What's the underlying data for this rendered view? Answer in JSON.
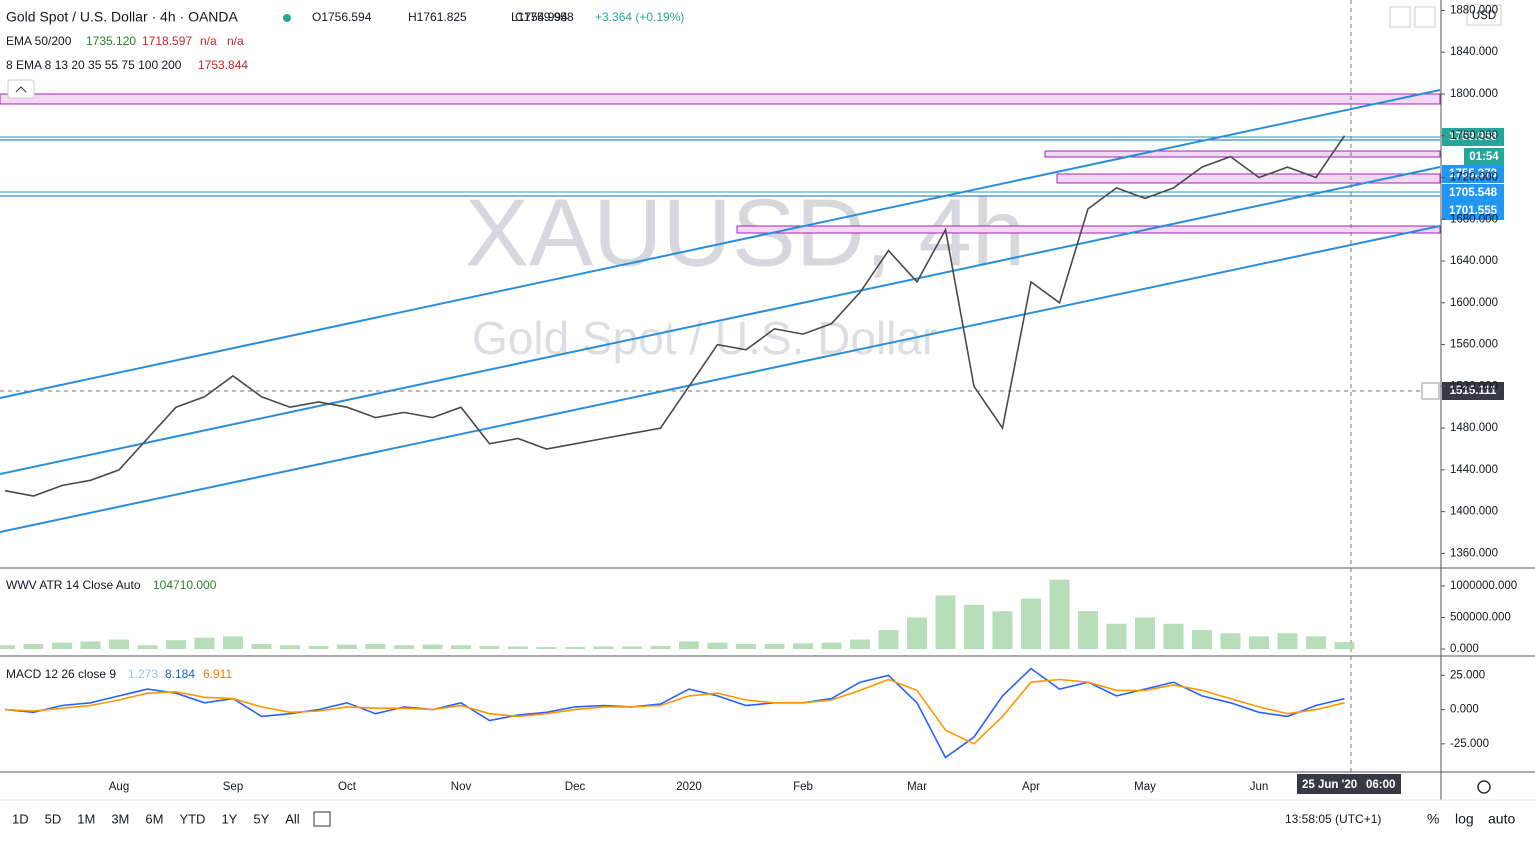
{
  "header": {
    "title": "Gold Spot / U.S. Dollar · 4h · OANDA",
    "open": "O1756.594",
    "high": "H1761.825",
    "low": "L1754.994",
    "close": "C1759.958",
    "change": "+3.364 (+0.19%)",
    "currency": "USD"
  },
  "indicators": {
    "ema_name": "EMA 50/200",
    "ema_values": [
      "1735.120",
      "1718.597",
      "n/a",
      "n/a"
    ],
    "ema8_name": "8 EMA 8 13 20 35 55 75 100 200",
    "ema8_value": "1753.844",
    "atr_name": "WWV ATR 14 Close Auto",
    "atr_value": "104710.000",
    "macd_name": "MACD 12 26 close 9",
    "macd_values": [
      "1.273",
      "8.184",
      "6.911"
    ]
  },
  "watermark": {
    "symbol": "XAUUSD, 4h",
    "name": "Gold Spot / U.S. Dollar"
  },
  "price_tags": [
    "1759.958",
    "01:54",
    "1755.373",
    "1705.548",
    "1701.555",
    "1515.111"
  ],
  "time_tags": [
    "25 Jun '20",
    "06:00"
  ],
  "toolbar": {
    "ranges": [
      "1D",
      "5D",
      "1M",
      "3M",
      "6M",
      "YTD",
      "1Y",
      "5Y",
      "All"
    ],
    "clock": "13:58:05 (UTC+1)",
    "options": [
      "%",
      "log",
      "auto"
    ]
  },
  "chart_data": [
    {
      "type": "line",
      "color": "#4a4a4a",
      "categories": [
        null,
        null,
        null,
        null,
        "Aug",
        null,
        null,
        null,
        "Sep",
        null,
        null,
        null,
        "Oct",
        null,
        null,
        null,
        "Nov",
        null,
        null,
        null,
        "Dec",
        null,
        null,
        null,
        "2020",
        null,
        null,
        null,
        "Feb",
        null,
        null,
        null,
        "Mar",
        null,
        null,
        null,
        "Apr",
        null,
        null,
        null,
        "May",
        null,
        null,
        null,
        "Jun",
        null,
        null,
        null
      ],
      "values": [
        1420,
        1415,
        1425,
        1430,
        1440,
        1470,
        1500,
        1510,
        1530,
        1510,
        1500,
        1505,
        1500,
        1490,
        1495,
        1490,
        1500,
        1465,
        1470,
        1460,
        1465,
        1470,
        1475,
        1480,
        1520,
        1560,
        1555,
        1575,
        1570,
        1580,
        1610,
        1650,
        1620,
        1670,
        1520,
        1480,
        1620,
        1600,
        1690,
        1710,
        1700,
        1710,
        1730,
        1740,
        1720,
        1730,
        1720,
        1760
      ],
      "ylim": [
        1346,
        1890
      ],
      "yticks": [
        {
          "value": 1360,
          "label": "1360.000"
        },
        {
          "value": 1400,
          "label": "1400.000"
        },
        {
          "value": 1440,
          "label": "1440.000"
        },
        {
          "value": 1480,
          "label": "1480.000"
        },
        {
          "value": 1520,
          "label": "1520.000"
        },
        {
          "value": 1560,
          "label": "1560.000"
        },
        {
          "value": 1600,
          "label": "1600.000"
        },
        {
          "value": 1640,
          "label": "1640.000"
        },
        {
          "value": 1680,
          "label": "1680.000"
        },
        {
          "value": 1720,
          "label": "1720.000"
        },
        {
          "value": 1760,
          "label": "1760.000"
        },
        {
          "value": 1800,
          "label": "1800.000"
        },
        {
          "value": 1840,
          "label": "1840.000"
        },
        {
          "value": 1880,
          "label": "1880.000"
        }
      ]
    },
    {
      "type": "bar",
      "color": "#a5d6a7",
      "values": [
        60000,
        80000,
        100000,
        120000,
        150000,
        60000,
        140000,
        180000,
        200000,
        80000,
        60000,
        50000,
        70000,
        80000,
        60000,
        70000,
        60000,
        50000,
        40000,
        30000,
        30000,
        40000,
        40000,
        50000,
        120000,
        100000,
        80000,
        80000,
        90000,
        100000,
        150000,
        300000,
        500000,
        850000,
        700000,
        600000,
        800000,
        1100000,
        600000,
        400000,
        500000,
        400000,
        300000,
        250000,
        200000,
        250000,
        200000,
        110000
      ],
      "ylim": [
        -95000,
        1254000
      ],
      "yticks": [
        {
          "value": 0,
          "label": "0.000"
        },
        {
          "value": 500000,
          "label": "500000.000"
        },
        {
          "value": 1000000,
          "label": "1000000.000"
        }
      ]
    },
    {
      "type": "line",
      "series": [
        {
          "color": "#2962ff",
          "values": [
            0,
            -2,
            3,
            5,
            10,
            15,
            12,
            5,
            8,
            -5,
            -3,
            0,
            5,
            -3,
            2,
            0,
            5,
            -8,
            -4,
            -2,
            2,
            3,
            2,
            4,
            15,
            10,
            3,
            5,
            5,
            8,
            20,
            25,
            5,
            -35,
            -20,
            10,
            30,
            15,
            20,
            10,
            15,
            20,
            10,
            5,
            -2,
            -5,
            3,
            8
          ]
        },
        {
          "color": "#ff9800",
          "values": [
            0,
            -1,
            1,
            3,
            7,
            12,
            13,
            9,
            8,
            2,
            -2,
            -1,
            2,
            1,
            1,
            0,
            3,
            -3,
            -5,
            -3,
            0,
            2,
            2,
            3,
            10,
            12,
            7,
            5,
            5,
            7,
            14,
            22,
            14,
            -15,
            -25,
            -5,
            20,
            22,
            20,
            14,
            14,
            18,
            14,
            8,
            2,
            -3,
            0,
            5
          ]
        }
      ],
      "ylim": [
        -45.6,
        37.7
      ],
      "yticks": [
        {
          "value": -25,
          "label": "-25.000"
        },
        {
          "value": 0,
          "label": "0.000"
        },
        {
          "value": 25,
          "label": "25.000"
        }
      ]
    }
  ]
}
